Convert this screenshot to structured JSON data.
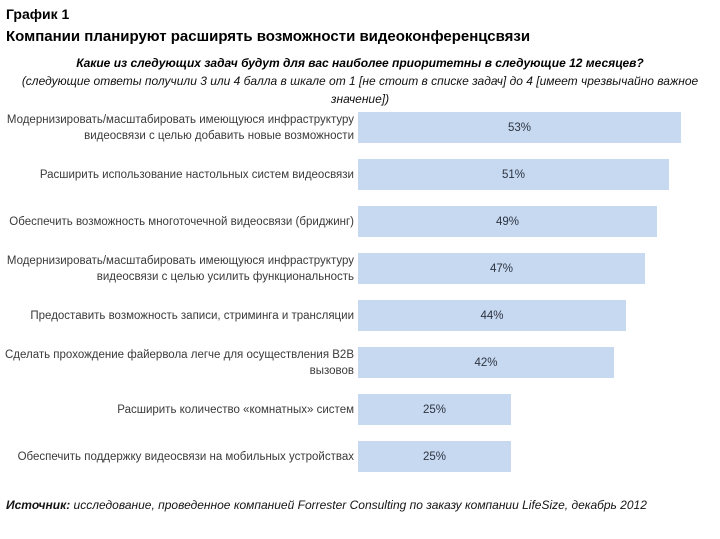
{
  "header": {
    "chart_label": "График 1",
    "title": "Компании планируют расширять возможности видеоконференцсвязи",
    "question": "Какие из следующих задач будут для вас наиболее приоритетны в следующие 12 месяцев?",
    "note_lines": [
      "(следующие ответы получили 3 или 4 балла в шкале от 1 [не стоит в списке задач] до 4 [имеет чрезвычайно важное",
      "значение])"
    ]
  },
  "chart_data": {
    "type": "bar",
    "orientation": "horizontal",
    "bar_color": "#c6d9f0",
    "value_suffix": "%",
    "xlim": [
      0,
      58
    ],
    "grid": false,
    "legend": false,
    "categories": [
      "Модернизировать/масштабировать имеющуюся инфраструктуру видеосвязи с целью добавить новые возможности",
      "Расширить использование настольных систем видеосвязи",
      "Обеспечить возможность многоточечной видеосвязи (бриджинг)",
      "Модернизировать/масштабировать имеющуюся инфраструктуру видеосвязи с целью усилить функциональность",
      "Предоставить возможность записи, стриминга и трансляции",
      "Сделать прохождение файервола легче для осуществления B2B вызовов",
      "Расширить количество «комнатных» систем",
      "Обеспечить поддержку видеосвязи на мобильных устройствах"
    ],
    "values": [
      53,
      51,
      49,
      47,
      44,
      42,
      25,
      25
    ],
    "value_labels": [
      "53%",
      "51%",
      "49%",
      "47%",
      "44%",
      "42%",
      "25%",
      "25%"
    ]
  },
  "footer": {
    "source_label": "Источник:",
    "source_text": "исследование, проведенное компанией Forrester Consulting по заказу компании LifeSize, декабрь 2012"
  }
}
